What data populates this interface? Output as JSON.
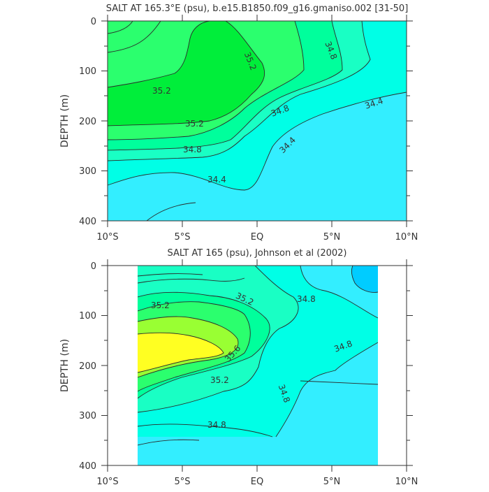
{
  "chart_data": [
    {
      "type": "contour",
      "title": "SALT AT 165.3°E (psu), b.e15.B1850.f09_g16.gmaniso.002 [31-50]",
      "xlabel": "",
      "ylabel": "DEPTH (m)",
      "x_ticks": [
        "10°S",
        "5°S",
        "EQ",
        "5°N",
        "10°N"
      ],
      "x_tick_values": [
        -10,
        -5,
        0,
        5,
        10
      ],
      "y_ticks": [
        "0",
        "100",
        "200",
        "300",
        "400"
      ],
      "y_tick_values": [
        0,
        100,
        200,
        300,
        400
      ],
      "xlim": [
        -10,
        10
      ],
      "ylim": [
        400,
        0
      ],
      "contour_labels": [
        "35.2",
        "35.2",
        "35.2",
        "34.8",
        "34.8",
        "34.8",
        "34.4",
        "34.4",
        "34.4"
      ],
      "colors": {
        "lt_34_4": "#33eeff",
        "34_4_34_6": "#00ffe6",
        "34_6_34_8": "#19ffc4",
        "34_8_35_0": "#00ff9c",
        "35_0_35_2": "#2bff6e",
        "gt_35_2": "#00ee3a"
      }
    },
    {
      "type": "contour",
      "title": "SALT AT 165 (psu), Johnson et al (2002)",
      "xlabel": "",
      "ylabel": "DEPTH (m)",
      "x_ticks": [
        "10°S",
        "5°S",
        "EQ",
        "5°N",
        "10°N"
      ],
      "x_tick_values": [
        -10,
        -5,
        0,
        5,
        10
      ],
      "y_ticks": [
        "0",
        "100",
        "200",
        "300",
        "400"
      ],
      "y_tick_values": [
        0,
        100,
        200,
        300,
        400
      ],
      "xlim": [
        -10,
        10
      ],
      "ylim": [
        400,
        0
      ],
      "data_extent_x": [
        -8,
        8
      ],
      "contour_labels": [
        "35.2",
        "35.2",
        "35.6",
        "35.2",
        "34.8",
        "34.8",
        "34.8",
        "34.8"
      ],
      "colors": {
        "lt_34_4": "#00ccff",
        "34_4_34_6": "#33eeff",
        "34_6_34_8": "#00ffe6",
        "34_8_35_0": "#19ffc4",
        "35_0_35_2": "#00ff9c",
        "35_2_35_4": "#2bff6e",
        "35_4_35_6": "#99ff33",
        "gt_35_6": "#ffff22"
      }
    }
  ]
}
